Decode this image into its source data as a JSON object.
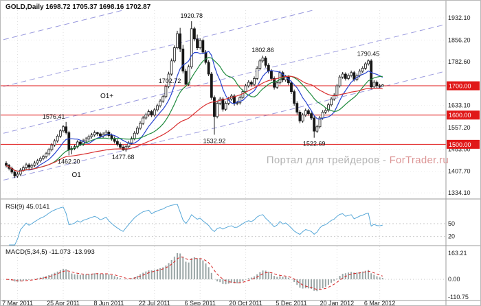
{
  "window": {
    "app": "trading-terminal"
  },
  "watermark": {
    "prefix": "Портал для трейдеров - ",
    "brand": "ForTrader.ru"
  },
  "colors": {
    "background": "#ffffff",
    "candle": "#161616",
    "grid_vertical": "#dcdcdc",
    "grid_horizontal": "#ececec",
    "separator": "#9b9b9b",
    "axis_text": "#222222",
    "level_red": "#e01818",
    "tag_text": "#ffffff",
    "watermark_gray": "#b4b4b4",
    "watermark_brand": "#dc9696"
  },
  "chart_data": {
    "type": "candlestick",
    "symbol": "GOLD",
    "timeframe": "Daily",
    "title": "GOLD,Daily 1698.72 1705.37 1698.16 1702.87",
    "last_quote": {
      "open": 1698.72,
      "high": 1705.37,
      "low": 1698.16,
      "close": 1702.87
    },
    "layout": {
      "price_min": 1318,
      "price_max": 1958,
      "grid": true
    },
    "y_axis_labels": [
      "1932.10",
      "1856.20",
      "1782.60",
      "1633.10",
      "1557.20",
      "1483.00",
      "1407.70",
      "1334.10"
    ],
    "price_levels": [
      {
        "label": "1700.00",
        "value": 1700
      },
      {
        "label": "1600.00",
        "value": 1600
      },
      {
        "label": "1500.00",
        "value": 1500
      }
    ],
    "x_ticks": [
      {
        "label": "7 Mar 2011",
        "i": 4
      },
      {
        "label": "25 Apr 2011",
        "i": 20
      },
      {
        "label": "8 Jun 2011",
        "i": 36
      },
      {
        "label": "22 Jul 2011",
        "i": 52
      },
      {
        "label": "6 Sep 2011",
        "i": 68
      },
      {
        "label": "20 Oct 2011",
        "i": 84
      },
      {
        "label": "5 Dec 2011",
        "i": 100
      },
      {
        "label": "20 Jan 2012",
        "i": 116
      },
      {
        "label": "6 Mar 2012",
        "i": 131
      }
    ],
    "annotations": [
      {
        "text": "1576.41",
        "i": 21,
        "price": 1576.41,
        "pos": "above",
        "dx": -18
      },
      {
        "text": "1462.20",
        "i": 22,
        "price": 1462.2,
        "pos": "below"
      },
      {
        "text": "1477.68",
        "i": 41,
        "price": 1477.68,
        "pos": "below"
      },
      {
        "text": "1702.72",
        "i": 63,
        "price": 1702.72,
        "pos": "left"
      },
      {
        "text": "1920.78",
        "i": 65,
        "price": 1920.78,
        "pos": "above"
      },
      {
        "text": "1532.92",
        "i": 73,
        "price": 1532.92,
        "pos": "below"
      },
      {
        "text": "1802.86",
        "i": 90,
        "price": 1802.86,
        "pos": "above"
      },
      {
        "text": "1522.69",
        "i": 108,
        "price": 1522.69,
        "pos": "below"
      },
      {
        "text": "1790.45",
        "i": 127,
        "price": 1790.45,
        "pos": "above"
      }
    ],
    "channel": {
      "color": "#9a9ade",
      "slope_per_index": 2.4,
      "intercepts": [
        1380,
        1540,
        1700,
        1860
      ],
      "labels": [
        {
          "text": "O1+",
          "i": 33,
          "price": 1658
        },
        {
          "text": "O1",
          "i": 23,
          "price": 1388
        }
      ]
    },
    "moving_averages": [
      {
        "period": 8,
        "color": "#2743cf"
      },
      {
        "period": 16,
        "color": "#1f8a3d"
      },
      {
        "period": 44,
        "color": "#d93030"
      }
    ],
    "rsi": {
      "label": "RSI(9) 45.0141",
      "period": 9,
      "value": 45.0141,
      "color": "#58a8d8",
      "levels": [
        50,
        20
      ],
      "axis_labels": [
        "50",
        "20"
      ]
    },
    "macd": {
      "label": "MACD(5,34,5) -11.073 -13.993",
      "fast": 5,
      "slow": 34,
      "signal": 5,
      "macd_value": -11.073,
      "signal_value": -13.993,
      "axis_max": 163.21,
      "axis_min": -110.75,
      "axis_labels": [
        "163.21",
        "0.00",
        "-110.75"
      ],
      "histogram_color": "#9aa6a6",
      "signal_color": "#d42020"
    },
    "candles": [
      [
        1435,
        1442,
        1421,
        1428
      ],
      [
        1428,
        1433,
        1411,
        1418
      ],
      [
        1418,
        1424,
        1398,
        1405
      ],
      [
        1405,
        1411,
        1385,
        1392
      ],
      [
        1392,
        1405,
        1386,
        1398
      ],
      [
        1398,
        1419,
        1392,
        1412
      ],
      [
        1412,
        1427,
        1406,
        1420
      ],
      [
        1420,
        1437,
        1414,
        1430
      ],
      [
        1430,
        1436,
        1415,
        1422
      ],
      [
        1422,
        1434,
        1416,
        1428
      ],
      [
        1428,
        1443,
        1422,
        1436
      ],
      [
        1436,
        1450,
        1430,
        1444
      ],
      [
        1444,
        1458,
        1438,
        1452
      ],
      [
        1452,
        1464,
        1446,
        1458
      ],
      [
        1458,
        1474,
        1452,
        1468
      ],
      [
        1468,
        1488,
        1462,
        1482
      ],
      [
        1482,
        1504,
        1476,
        1498
      ],
      [
        1498,
        1518,
        1492,
        1512
      ],
      [
        1512,
        1534,
        1506,
        1528
      ],
      [
        1528,
        1552,
        1522,
        1546
      ],
      [
        1546,
        1566,
        1540,
        1560
      ],
      [
        1560,
        1576.41,
        1534,
        1540
      ],
      [
        1540,
        1546,
        1462.2,
        1481
      ],
      [
        1481,
        1494,
        1466,
        1486
      ],
      [
        1486,
        1499,
        1480,
        1492
      ],
      [
        1492,
        1514,
        1486,
        1508
      ],
      [
        1508,
        1515,
        1494,
        1500
      ],
      [
        1500,
        1519,
        1494,
        1512
      ],
      [
        1512,
        1525,
        1506,
        1518
      ],
      [
        1518,
        1533,
        1512,
        1526
      ],
      [
        1526,
        1539,
        1520,
        1532
      ],
      [
        1532,
        1547,
        1526,
        1540
      ],
      [
        1540,
        1543,
        1529,
        1536
      ],
      [
        1536,
        1542,
        1521,
        1528
      ],
      [
        1528,
        1541,
        1522,
        1534
      ],
      [
        1534,
        1549,
        1528,
        1542
      ],
      [
        1542,
        1548,
        1523,
        1530
      ],
      [
        1530,
        1537,
        1513,
        1520
      ],
      [
        1520,
        1527,
        1503,
        1510
      ],
      [
        1510,
        1517,
        1493,
        1500
      ],
      [
        1500,
        1507,
        1483,
        1490
      ],
      [
        1490,
        1497,
        1477.68,
        1481
      ],
      [
        1481,
        1499,
        1475,
        1492
      ],
      [
        1492,
        1512,
        1486,
        1505
      ],
      [
        1505,
        1527,
        1499,
        1520
      ],
      [
        1520,
        1545,
        1514,
        1538
      ],
      [
        1538,
        1562,
        1532,
        1555
      ],
      [
        1555,
        1579,
        1549,
        1572
      ],
      [
        1572,
        1597,
        1566,
        1590
      ],
      [
        1590,
        1608,
        1584,
        1601
      ],
      [
        1601,
        1619,
        1595,
        1612
      ],
      [
        1612,
        1618,
        1593,
        1600
      ],
      [
        1600,
        1625,
        1594,
        1618
      ],
      [
        1618,
        1639,
        1612,
        1632
      ],
      [
        1632,
        1655,
        1626,
        1648
      ],
      [
        1648,
        1670,
        1642,
        1663
      ],
      [
        1663,
        1705,
        1657,
        1698
      ],
      [
        1698,
        1748,
        1692,
        1740
      ],
      [
        1740,
        1793,
        1734,
        1785
      ],
      [
        1785,
        1838,
        1779,
        1830
      ],
      [
        1830,
        1888,
        1824,
        1878
      ],
      [
        1878,
        1898,
        1815,
        1826
      ],
      [
        1826,
        1840,
        1742,
        1750
      ],
      [
        1750,
        1758,
        1702.72,
        1705
      ],
      [
        1705,
        1772,
        1700,
        1765
      ],
      [
        1765,
        1920.78,
        1758,
        1895
      ],
      [
        1895,
        1902,
        1852,
        1860
      ],
      [
        1860,
        1875,
        1822,
        1830
      ],
      [
        1830,
        1862,
        1824,
        1855
      ],
      [
        1855,
        1861,
        1808,
        1815
      ],
      [
        1815,
        1822,
        1773,
        1780
      ],
      [
        1780,
        1787,
        1733,
        1740
      ],
      [
        1740,
        1747,
        1652,
        1660
      ],
      [
        1660,
        1667,
        1532.92,
        1595
      ],
      [
        1595,
        1648,
        1589,
        1640
      ],
      [
        1640,
        1662,
        1634,
        1655
      ],
      [
        1655,
        1661,
        1612,
        1620
      ],
      [
        1620,
        1647,
        1614,
        1640
      ],
      [
        1640,
        1662,
        1634,
        1655
      ],
      [
        1655,
        1672,
        1649,
        1665
      ],
      [
        1665,
        1671,
        1632,
        1640
      ],
      [
        1640,
        1649,
        1634,
        1642
      ],
      [
        1642,
        1667,
        1636,
        1660
      ],
      [
        1660,
        1687,
        1654,
        1680
      ],
      [
        1680,
        1707,
        1674,
        1700
      ],
      [
        1700,
        1719,
        1694,
        1712
      ],
      [
        1712,
        1718,
        1697,
        1705
      ],
      [
        1705,
        1732,
        1699,
        1725
      ],
      [
        1725,
        1767,
        1719,
        1760
      ],
      [
        1760,
        1792,
        1754,
        1785
      ],
      [
        1785,
        1802.86,
        1779,
        1795
      ],
      [
        1795,
        1801,
        1762,
        1770
      ],
      [
        1770,
        1777,
        1742,
        1750
      ],
      [
        1750,
        1757,
        1717,
        1725
      ],
      [
        1725,
        1732,
        1687,
        1695
      ],
      [
        1695,
        1717,
        1689,
        1710
      ],
      [
        1710,
        1752,
        1704,
        1745
      ],
      [
        1745,
        1751,
        1712,
        1720
      ],
      [
        1720,
        1737,
        1714,
        1730
      ],
      [
        1730,
        1736,
        1702,
        1710
      ],
      [
        1710,
        1717,
        1672,
        1680
      ],
      [
        1680,
        1687,
        1632,
        1640
      ],
      [
        1640,
        1647,
        1602,
        1610
      ],
      [
        1610,
        1617,
        1572,
        1580
      ],
      [
        1580,
        1607,
        1574,
        1600
      ],
      [
        1600,
        1622,
        1594,
        1615
      ],
      [
        1615,
        1621,
        1598,
        1605
      ],
      [
        1605,
        1612,
        1583,
        1590
      ],
      [
        1590,
        1597,
        1522.69,
        1545
      ],
      [
        1545,
        1567,
        1539,
        1560
      ],
      [
        1560,
        1597,
        1554,
        1590
      ],
      [
        1590,
        1617,
        1584,
        1610
      ],
      [
        1610,
        1623,
        1604,
        1616
      ],
      [
        1616,
        1642,
        1610,
        1635
      ],
      [
        1635,
        1662,
        1629,
        1655
      ],
      [
        1655,
        1675,
        1649,
        1668
      ],
      [
        1668,
        1707,
        1662,
        1700
      ],
      [
        1700,
        1737,
        1694,
        1730
      ],
      [
        1730,
        1747,
        1724,
        1740
      ],
      [
        1740,
        1746,
        1718,
        1725
      ],
      [
        1725,
        1742,
        1719,
        1735
      ],
      [
        1735,
        1752,
        1729,
        1745
      ],
      [
        1745,
        1751,
        1715,
        1722
      ],
      [
        1722,
        1742,
        1716,
        1735
      ],
      [
        1735,
        1757,
        1729,
        1750
      ],
      [
        1750,
        1767,
        1744,
        1760
      ],
      [
        1760,
        1782,
        1754,
        1775
      ],
      [
        1775,
        1790.45,
        1769,
        1785
      ],
      [
        1785,
        1791,
        1688,
        1696
      ],
      [
        1696,
        1719,
        1690,
        1712
      ],
      [
        1712,
        1718,
        1693,
        1700
      ],
      [
        1700,
        1707,
        1691,
        1698
      ],
      [
        1698.72,
        1705.37,
        1698.16,
        1702.87
      ]
    ]
  }
}
